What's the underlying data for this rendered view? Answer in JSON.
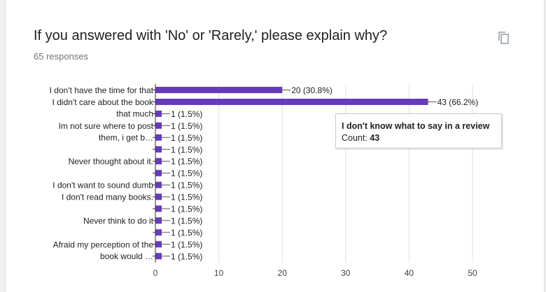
{
  "question": {
    "title": "If you answered with 'No' or 'Rarely,' please explain why?",
    "responses": "65 responses"
  },
  "icons": {
    "copy": "copy-icon"
  },
  "tooltip": {
    "category": "I don't know what to say in a review",
    "count_label": "Count:",
    "count_value": "43"
  },
  "colors": {
    "bar": "#673ab7",
    "grid": "#e0e0e0",
    "axis": "#333333"
  },
  "chart_data": {
    "type": "bar",
    "orientation": "horizontal",
    "categories": [
      "I don't have the time for that",
      "I don't know what to say in a review",
      "I didn't care about the book that much",
      "",
      "Im not sure where to post them, i get b…",
      "",
      "Never thought about it.",
      "",
      "I don't want to sound dumb",
      "I don't read many books.",
      "",
      "Never think to do it",
      "",
      "Afraid my perception of the book would …",
      ""
    ],
    "visible_category_labels": [
      {
        "row": 0,
        "lines": [
          "I don't have the time for that"
        ]
      },
      {
        "row": 1.5,
        "lines": [
          "I didn't care about the book",
          "that much"
        ]
      },
      {
        "row": 3.5,
        "lines": [
          "Im not sure where to post",
          "them, i get b…"
        ]
      },
      {
        "row": 6,
        "lines": [
          "Never thought about it."
        ]
      },
      {
        "row": 8,
        "lines": [
          "I don't want to sound dumb"
        ]
      },
      {
        "row": 9,
        "lines": [
          "I don't read many books."
        ]
      },
      {
        "row": 11,
        "lines": [
          "Never think to do it"
        ]
      },
      {
        "row": 13.5,
        "lines": [
          "Afraid my perception of the",
          "book would …"
        ]
      }
    ],
    "values": [
      20,
      43,
      1,
      1,
      1,
      1,
      1,
      1,
      1,
      1,
      1,
      1,
      1,
      1,
      1
    ],
    "labels": [
      "20 (30.8%)",
      "43 (66.2%)",
      "1 (1.5%)",
      "1 (1.5%)",
      "1 (1.5%)",
      "1 (1.5%)",
      "1 (1.5%)",
      "1 (1.5%)",
      "1 (1.5%)",
      "1 (1.5%)",
      "1 (1.5%)",
      "1 (1.5%)",
      "1 (1.5%)",
      "1 (1.5%)",
      "1 (1.5%)"
    ],
    "xlim": [
      0,
      50
    ],
    "xticks": [
      0,
      10,
      20,
      30,
      40,
      50
    ],
    "grid": true,
    "legend": "none"
  }
}
